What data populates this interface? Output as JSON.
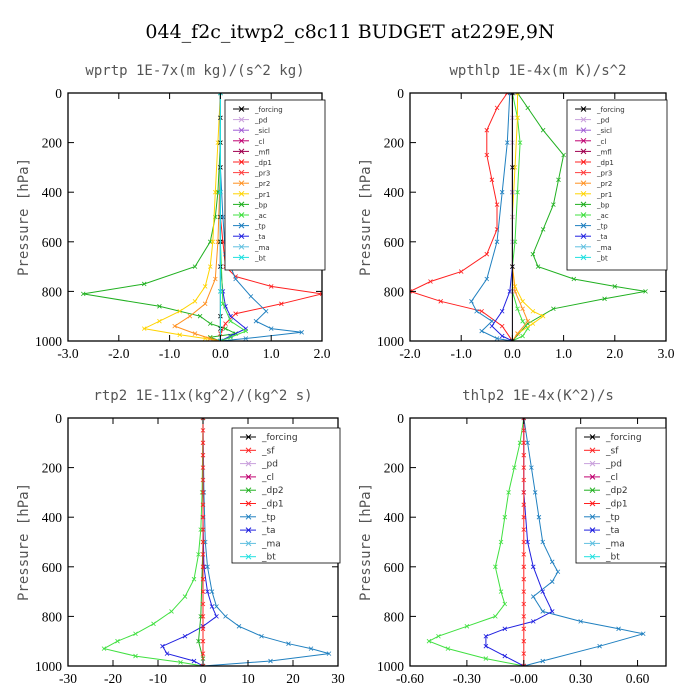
{
  "figure_title": "044_f2c_itwp2_c8c11  BUDGET at229E,9N",
  "y_label": "Pressure [hPa]",
  "colors": {
    "forcing": "#000000",
    "pd": "#c9a0dc",
    "sicl": "#a05cd6",
    "cl": "#c00070",
    "mfl": "#a00050",
    "dp1": "#ff2020",
    "pr3": "#ff4040",
    "pr2": "#ff9020",
    "pr1": "#ffd400",
    "bp": "#20b020",
    "ac": "#40e040",
    "tp": "#2080c0",
    "ta": "#2020e0",
    "ma": "#60c0e0",
    "bt": "#20e0e0",
    "sf": "#ff2020",
    "dp2": "#20b020"
  },
  "chart_data": [
    {
      "type": "line",
      "title": "wprtp  1E-7x(m kg)/(s^2 kg)",
      "xlim": [
        -3.0,
        2.0
      ],
      "xticks": [
        "-3.0",
        "-2.0",
        "-1.0",
        "0.0",
        "1.0",
        "2.0"
      ],
      "xtick_values": [
        -3.0,
        -2.0,
        -1.0,
        0.0,
        1.0,
        2.0
      ],
      "ylim": [
        1000,
        0
      ],
      "yticks": [
        "0",
        "200",
        "400",
        "600",
        "800",
        "1000"
      ],
      "ytick_values": [
        0,
        200,
        400,
        600,
        800,
        1000
      ],
      "legend_loc": "upper-right",
      "legend": [
        "_forcing",
        "_pd",
        "_sicl",
        "_cl",
        "_mfl",
        "_dp1",
        "_pr3",
        "_pr2",
        "_pr1",
        "_bp",
        "_ac",
        "_tp",
        "_ta",
        "_ma",
        "_bt"
      ],
      "series": [
        {
          "name": "_bp",
          "color": "bp",
          "x": [
            0,
            0,
            -0.05,
            -0.1,
            -0.2,
            -0.5,
            -1.5,
            -2.7,
            -1.2,
            -0.4,
            -0.2,
            0.1,
            0.3,
            -0.2,
            0
          ],
          "y": [
            0,
            200,
            400,
            500,
            600,
            700,
            770,
            810,
            860,
            900,
            930,
            950,
            970,
            985,
            1000
          ]
        },
        {
          "name": "_dp1",
          "color": "dp1",
          "x": [
            0,
            0,
            0,
            0.05,
            0.1,
            0.3,
            1.0,
            2.0,
            1.2,
            0.3,
            0.1,
            0,
            0
          ],
          "y": [
            0,
            300,
            500,
            600,
            700,
            740,
            780,
            810,
            850,
            890,
            930,
            970,
            1000
          ]
        },
        {
          "name": "_pr1",
          "color": "pr1",
          "x": [
            0,
            -0.05,
            -0.1,
            -0.15,
            -0.2,
            -0.3,
            -0.5,
            -0.8,
            -1.2,
            -1.5,
            -0.8,
            -0.3,
            0
          ],
          "y": [
            0,
            200,
            400,
            600,
            700,
            780,
            840,
            880,
            920,
            950,
            975,
            990,
            1000
          ]
        },
        {
          "name": "_pr2",
          "color": "pr2",
          "x": [
            0,
            0,
            -0.05,
            -0.1,
            -0.3,
            -0.6,
            -0.9,
            -0.5,
            -0.2,
            0
          ],
          "y": [
            0,
            300,
            600,
            750,
            850,
            900,
            940,
            970,
            990,
            1000
          ]
        },
        {
          "name": "_tp",
          "color": "tp",
          "x": [
            0,
            0,
            0.05,
            0.1,
            0.3,
            0.6,
            0.9,
            0.7,
            1.0,
            1.6,
            0.5,
            0
          ],
          "y": [
            0,
            300,
            500,
            650,
            750,
            820,
            880,
            920,
            950,
            965,
            990,
            1000
          ]
        },
        {
          "name": "_ta",
          "color": "ta",
          "x": [
            0,
            0,
            0,
            0.05,
            0.1,
            0.2,
            0.5,
            0.2,
            0
          ],
          "y": [
            0,
            400,
            700,
            800,
            860,
            900,
            950,
            980,
            1000
          ]
        },
        {
          "name": "_ac",
          "color": "ac",
          "x": [
            0,
            0,
            0.05,
            0.2,
            0.5,
            0.2,
            0
          ],
          "y": [
            0,
            600,
            850,
            920,
            960,
            985,
            1000
          ]
        },
        {
          "name": "_forcing",
          "color": "forcing",
          "x": [
            0,
            0,
            0,
            0,
            0,
            0,
            0,
            0,
            0,
            0,
            0,
            0
          ],
          "y": [
            0,
            100,
            200,
            300,
            400,
            500,
            600,
            700,
            800,
            900,
            950,
            1000
          ]
        },
        {
          "name": "_ma",
          "color": "ma",
          "x": [
            0,
            0,
            0,
            0
          ],
          "y": [
            0,
            400,
            800,
            1000
          ]
        },
        {
          "name": "_bt",
          "color": "bt",
          "x": [
            0,
            0,
            0,
            0
          ],
          "y": [
            0,
            400,
            800,
            1000
          ]
        }
      ]
    },
    {
      "type": "line",
      "title": "wpthlp  1E-4x(m K)/s^2",
      "xlim": [
        -2.0,
        3.0
      ],
      "xticks": [
        "-2.0",
        "-1.0",
        "0.0",
        "1.0",
        "2.0",
        "3.0"
      ],
      "xtick_values": [
        -2.0,
        -1.0,
        0.0,
        1.0,
        2.0,
        3.0
      ],
      "ylim": [
        1000,
        0
      ],
      "yticks": [
        "0",
        "200",
        "400",
        "600",
        "800",
        "1000"
      ],
      "ytick_values": [
        0,
        200,
        400,
        600,
        800,
        1000
      ],
      "legend_loc": "upper-right",
      "legend": [
        "_forcing",
        "_pd",
        "_sicl",
        "_cl",
        "_mfl",
        "_dp1",
        "_pr3",
        "_pr2",
        "_pr1",
        "_bp",
        "_ac",
        "_tp",
        "_ta",
        "_ma",
        "_bt"
      ],
      "series": [
        {
          "name": "_bp",
          "color": "bp",
          "x": [
            0.1,
            0.3,
            0.6,
            1.0,
            0.9,
            0.8,
            0.6,
            0.4,
            0.5,
            1.2,
            2.0,
            2.6,
            1.8,
            0.8,
            0.3,
            0
          ],
          "y": [
            0,
            60,
            150,
            250,
            350,
            450,
            550,
            650,
            700,
            750,
            780,
            800,
            830,
            870,
            930,
            1000
          ]
        },
        {
          "name": "_dp1",
          "color": "dp1",
          "x": [
            -0.1,
            -0.3,
            -0.5,
            -0.5,
            -0.4,
            -0.3,
            -0.3,
            -0.5,
            -1.0,
            -1.6,
            -2.0,
            -1.4,
            -0.6,
            -0.2,
            0
          ],
          "y": [
            0,
            60,
            150,
            250,
            350,
            450,
            550,
            650,
            720,
            760,
            800,
            840,
            880,
            940,
            1000
          ]
        },
        {
          "name": "_ac",
          "color": "ac",
          "x": [
            0,
            0.1,
            0.15,
            0.1,
            0.05,
            0,
            0,
            0.1,
            0.2,
            0.3,
            0.2,
            0
          ],
          "y": [
            0,
            100,
            200,
            400,
            600,
            700,
            800,
            870,
            920,
            950,
            980,
            1000
          ]
        },
        {
          "name": "_pr1",
          "color": "pr1",
          "x": [
            0.1,
            0.1,
            0.05,
            0,
            0,
            0.05,
            0.2,
            0.4,
            0.6,
            0.4,
            0.1,
            0
          ],
          "y": [
            0,
            100,
            300,
            500,
            700,
            780,
            840,
            880,
            900,
            930,
            970,
            1000
          ]
        },
        {
          "name": "_pr2",
          "color": "pr2",
          "x": [
            0,
            0,
            0,
            0.05,
            0.2,
            0.3,
            0.1,
            0
          ],
          "y": [
            0,
            400,
            700,
            800,
            870,
            920,
            970,
            1000
          ]
        },
        {
          "name": "_tp",
          "color": "tp",
          "x": [
            -0.05,
            -0.1,
            -0.2,
            -0.3,
            -0.5,
            -0.8,
            -0.7,
            -0.4,
            -0.6,
            -0.3,
            0
          ],
          "y": [
            0,
            200,
            400,
            600,
            750,
            840,
            880,
            920,
            960,
            990,
            1000
          ]
        },
        {
          "name": "_ta",
          "color": "ta",
          "x": [
            0,
            0,
            0,
            -0.05,
            -0.2,
            -0.4,
            -0.2,
            0
          ],
          "y": [
            0,
            400,
            700,
            800,
            880,
            940,
            980,
            1000
          ]
        },
        {
          "name": "_pd",
          "color": "pd",
          "x": [
            0,
            0,
            0,
            0,
            0,
            0,
            0,
            0,
            0,
            0
          ],
          "y": [
            0,
            100,
            200,
            300,
            400,
            500,
            600,
            700,
            800,
            1000
          ]
        },
        {
          "name": "_forcing",
          "color": "forcing",
          "x": [
            0,
            0,
            0,
            0
          ],
          "y": [
            0,
            300,
            700,
            1000
          ]
        }
      ]
    },
    {
      "type": "line",
      "title": "rtp2  1E-11x(kg^2)/(kg^2 s)",
      "xlim": [
        -30,
        30
      ],
      "xticks": [
        "-30",
        "-20",
        "-10",
        "0",
        "10",
        "20",
        "30"
      ],
      "xtick_values": [
        -30,
        -20,
        -10,
        0,
        10,
        20,
        30
      ],
      "ylim": [
        1000,
        0
      ],
      "yticks": [
        "0",
        "200",
        "400",
        "600",
        "800",
        "1000"
      ],
      "ytick_values": [
        0,
        200,
        400,
        600,
        800,
        1000
      ],
      "legend_loc": "upper-right",
      "legend": [
        "_forcing",
        "_sf",
        "_pd",
        "_cl",
        "_dp2",
        "_dp1",
        "_tp",
        "_ta",
        "_ma",
        "_bt"
      ],
      "series": [
        {
          "name": "_dp1",
          "color": "ac",
          "x": [
            0,
            -0.2,
            -0.5,
            -1,
            -2,
            -4,
            -7,
            -11,
            -15,
            -19,
            -22,
            -15,
            -5,
            0
          ],
          "y": [
            0,
            300,
            450,
            550,
            650,
            720,
            780,
            830,
            870,
            900,
            930,
            960,
            985,
            1000
          ]
        },
        {
          "name": "_tp",
          "color": "tp",
          "x": [
            0,
            0.2,
            0.5,
            1,
            2,
            3,
            5,
            8,
            13,
            19,
            24,
            28,
            15,
            0
          ],
          "y": [
            0,
            300,
            500,
            600,
            700,
            760,
            800,
            840,
            880,
            910,
            930,
            950,
            980,
            1000
          ]
        },
        {
          "name": "_ta",
          "color": "ta",
          "x": [
            0,
            0,
            0.2,
            1,
            2,
            3,
            0,
            -4,
            -9,
            -8,
            -2,
            0
          ],
          "y": [
            0,
            400,
            600,
            700,
            760,
            800,
            840,
            880,
            920,
            950,
            980,
            1000
          ]
        },
        {
          "name": "_dp2",
          "color": "dp2",
          "x": [
            0,
            0,
            -0.5,
            -1,
            0,
            0
          ],
          "y": [
            0,
            500,
            800,
            900,
            970,
            1000
          ]
        },
        {
          "name": "_sf",
          "color": "sf",
          "x": [
            0,
            0,
            0,
            0,
            0,
            0,
            0,
            0,
            0,
            0,
            0,
            0,
            0,
            0,
            0,
            0,
            0,
            0,
            0,
            0,
            0
          ],
          "y": [
            0,
            50,
            100,
            150,
            200,
            250,
            300,
            350,
            400,
            450,
            500,
            550,
            600,
            650,
            700,
            750,
            800,
            850,
            900,
            950,
            1000
          ]
        }
      ]
    },
    {
      "type": "line",
      "title": "thlp2  1E-4x(K^2)/s",
      "xlim": [
        -0.6,
        0.75
      ],
      "xticks": [
        "-0.60",
        "-0.30",
        "-0.00",
        "0.30",
        "0.60"
      ],
      "xtick_values": [
        -0.6,
        -0.3,
        0.0,
        0.3,
        0.6
      ],
      "ylim": [
        1000,
        0
      ],
      "yticks": [
        "0",
        "200",
        "400",
        "600",
        "800",
        "1000"
      ],
      "ytick_values": [
        0,
        200,
        400,
        600,
        800,
        1000
      ],
      "legend_loc": "upper-right",
      "legend": [
        "_forcing",
        "_sf",
        "_pd",
        "_cl",
        "_dp2",
        "_dp1",
        "_tp",
        "_ta",
        "_ma",
        "_bt"
      ],
      "series": [
        {
          "name": "_dp1",
          "color": "ac",
          "x": [
            0,
            -0.02,
            -0.05,
            -0.08,
            -0.1,
            -0.12,
            -0.15,
            -0.12,
            -0.1,
            -0.15,
            -0.3,
            -0.45,
            -0.5,
            -0.4,
            -0.2,
            0
          ],
          "y": [
            0,
            100,
            200,
            300,
            400,
            500,
            600,
            700,
            750,
            800,
            840,
            880,
            900,
            930,
            970,
            1000
          ]
        },
        {
          "name": "_tp",
          "color": "tp",
          "x": [
            0,
            0.02,
            0.04,
            0.06,
            0.08,
            0.1,
            0.15,
            0.18,
            0.15,
            0.05,
            0.1,
            0.3,
            0.5,
            0.63,
            0.4,
            0.1,
            0
          ],
          "y": [
            0,
            100,
            200,
            300,
            400,
            500,
            580,
            620,
            660,
            720,
            780,
            820,
            850,
            870,
            920,
            980,
            1000
          ]
        },
        {
          "name": "_ta",
          "color": "ta",
          "x": [
            0,
            0,
            0.02,
            0.05,
            0.1,
            0.15,
            0.05,
            -0.1,
            -0.2,
            -0.2,
            -0.1,
            0
          ],
          "y": [
            0,
            300,
            500,
            600,
            700,
            780,
            820,
            850,
            880,
            920,
            960,
            1000
          ]
        },
        {
          "name": "_sf",
          "color": "sf",
          "x": [
            0,
            0,
            0,
            0,
            0,
            0,
            0,
            0,
            0,
            0,
            0,
            0,
            0,
            0,
            0,
            0,
            0,
            0,
            0,
            0,
            0
          ],
          "y": [
            0,
            50,
            100,
            150,
            200,
            250,
            300,
            350,
            400,
            450,
            500,
            550,
            600,
            650,
            700,
            750,
            800,
            850,
            900,
            950,
            1000
          ]
        }
      ]
    }
  ]
}
